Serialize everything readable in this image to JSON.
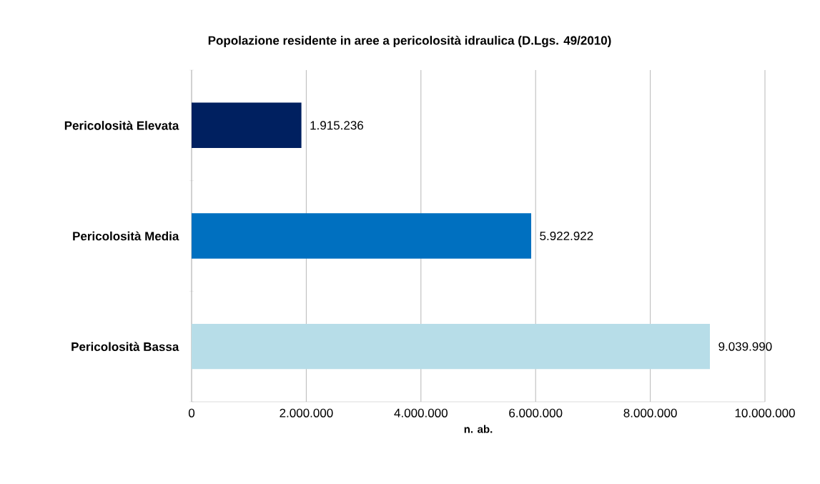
{
  "chart_data": {
    "type": "bar",
    "orientation": "horizontal",
    "title": "Popolazione residente in aree a pericolosità idraulica (D.Lgs. 49/2010)",
    "xlabel": "n. ab.",
    "categories": [
      "Pericolosità Elevata",
      "Pericolosità Media",
      "Pericolosità Bassa"
    ],
    "values": [
      1915236,
      5922922,
      9039990
    ],
    "colors": [
      "#002060",
      "#0070c0",
      "#b7dde8"
    ],
    "value_labels": [
      "1.915.236",
      "5.922.922",
      "9.039.990"
    ],
    "xlim": [
      0,
      10000000
    ],
    "xticks": [
      0,
      {
        "value": 2000000,
        "label": "2.000.000"
      },
      {
        "value": 4000000,
        "label": "4.000.000"
      },
      {
        "value": 6000000,
        "label": "6.000.000"
      },
      {
        "value": 8000000,
        "label": "8.000.000"
      },
      {
        "value": 10000000,
        "label": "10.000.000"
      }
    ],
    "grid": "x"
  }
}
